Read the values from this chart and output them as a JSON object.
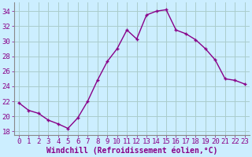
{
  "x": [
    0,
    1,
    2,
    3,
    4,
    5,
    6,
    7,
    8,
    9,
    10,
    11,
    12,
    13,
    14,
    15,
    16,
    17,
    18,
    19,
    20,
    21,
    22,
    23
  ],
  "y": [
    21.8,
    20.8,
    20.4,
    19.5,
    19.0,
    18.4,
    19.8,
    22.0,
    24.8,
    27.3,
    29.0,
    31.5,
    30.3,
    33.5,
    34.0,
    34.2,
    31.5,
    31.0,
    30.2,
    29.0,
    27.5,
    25.0,
    24.8,
    24.3
  ],
  "line_color": "#880088",
  "marker": "+",
  "marker_size": 3,
  "xlabel": "Windchill (Refroidissement éolien,°C)",
  "ylabel_ticks": [
    18,
    20,
    22,
    24,
    26,
    28,
    30,
    32,
    34
  ],
  "xtick_labels": [
    "0",
    "1",
    "2",
    "3",
    "4",
    "5",
    "6",
    "7",
    "8",
    "9",
    "10",
    "11",
    "12",
    "13",
    "14",
    "15",
    "16",
    "17",
    "18",
    "19",
    "20",
    "21",
    "22",
    "23"
  ],
  "ylim": [
    17.5,
    35.2
  ],
  "xlim": [
    -0.5,
    23.5
  ],
  "bg_color": "#cceeff",
  "grid_color": "#aacccc",
  "tick_fontsize": 6.5,
  "xlabel_fontsize": 7,
  "linewidth": 1.0
}
